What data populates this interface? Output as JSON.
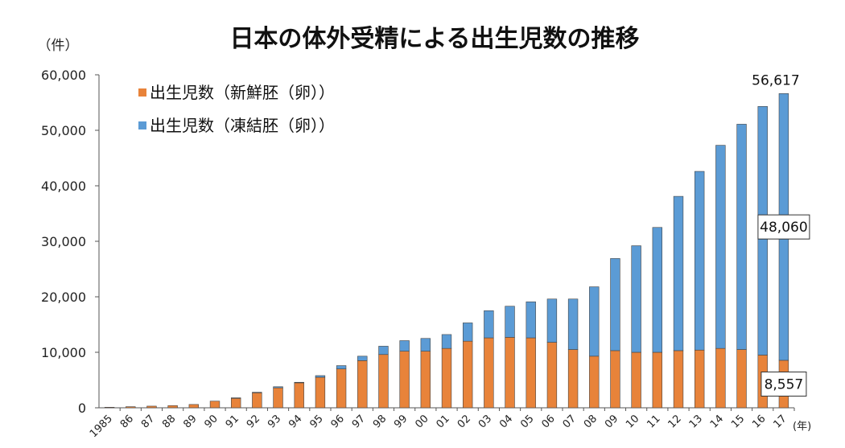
{
  "chart_data": {
    "type": "bar",
    "stacked": true,
    "title": "日本の体外受精による出生児数の推移",
    "ylabel": "（件）",
    "xlabel": "(年)",
    "ylim": [
      0,
      60000
    ],
    "yticks": [
      "0",
      "10,000",
      "20,000",
      "30,000",
      "40,000",
      "50,000",
      "60,000"
    ],
    "categories": [
      "1985",
      "86",
      "87",
      "88",
      "89",
      "90",
      "91",
      "92",
      "93",
      "94",
      "95",
      "96",
      "97",
      "98",
      "99",
      "00",
      "01",
      "02",
      "03",
      "04",
      "05",
      "06",
      "07",
      "08",
      "09",
      "10",
      "11",
      "12",
      "13",
      "14",
      "15",
      "16",
      "17"
    ],
    "series": [
      {
        "name": "出生児数（新鮮胚（卵））",
        "color": "#E8833A",
        "values": [
          100,
          200,
          300,
          400,
          600,
          1200,
          1700,
          2700,
          3600,
          4500,
          5500,
          7000,
          8500,
          9600,
          10200,
          10200,
          10700,
          12000,
          12600,
          12700,
          12600,
          11800,
          10500,
          9300,
          10300,
          10000,
          10000,
          10300,
          10400,
          10700,
          10500,
          9500,
          8557
        ]
      },
      {
        "name": "出生児数（凍結胚（卵））",
        "color": "#5B9BD5",
        "values": [
          0,
          0,
          0,
          0,
          0,
          0,
          100,
          100,
          200,
          100,
          300,
          600,
          800,
          1500,
          1900,
          2300,
          2500,
          3300,
          4900,
          5600,
          6500,
          7800,
          9100,
          12500,
          16600,
          19200,
          22500,
          27800,
          32200,
          36600,
          40600,
          44800,
          48060
        ]
      }
    ],
    "annotations": {
      "total_2017": "56,617",
      "frozen_2017": "48,060",
      "fresh_2017": "8,557"
    },
    "legend_position": "top-left",
    "grid": false
  }
}
